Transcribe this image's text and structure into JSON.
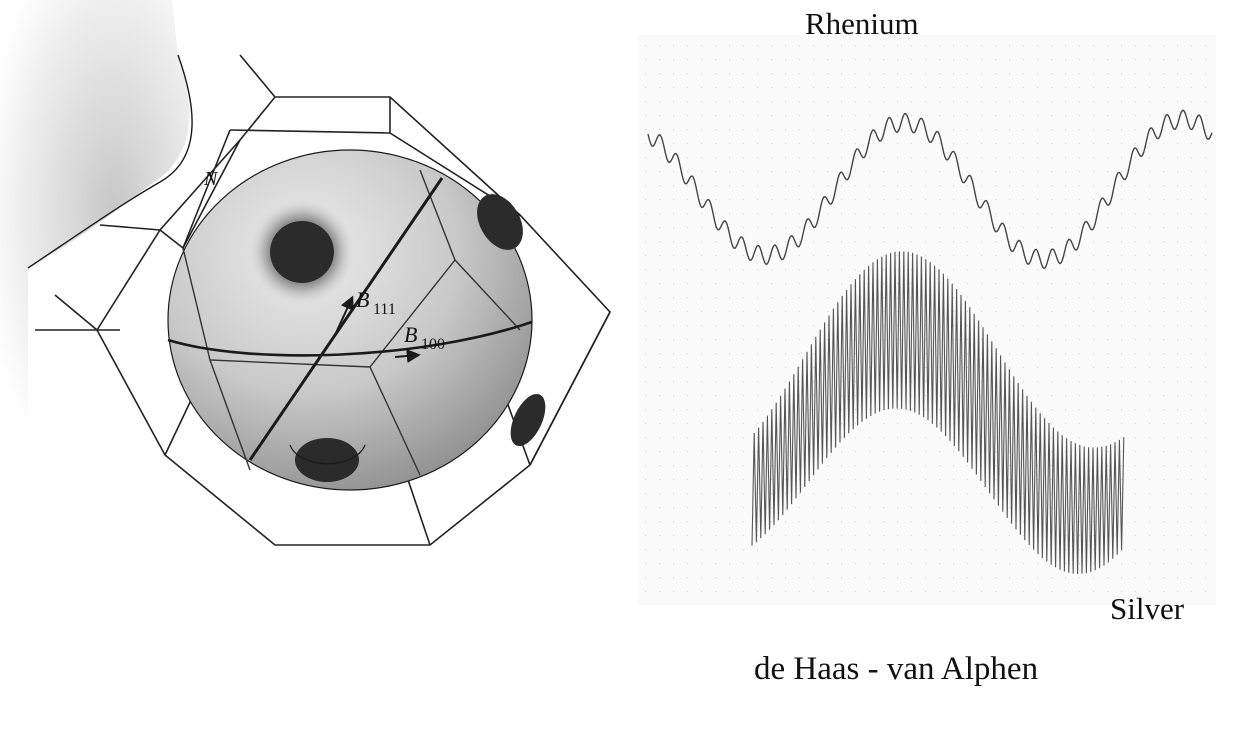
{
  "fermi_surface": {
    "point_label": "N",
    "b111_label": "B",
    "b111_sub": "111",
    "b100_label": "B",
    "b100_sub": "100"
  },
  "plots": {
    "top_label": "Rhenium",
    "bottom_label": "Silver"
  },
  "caption": "de Haas - van Alphen",
  "colors": {
    "sphere_fill": "#c4c4c4",
    "neck_fill": "#2b2b2b",
    "line": "#1a1a1a",
    "paper": "#ffffff"
  }
}
